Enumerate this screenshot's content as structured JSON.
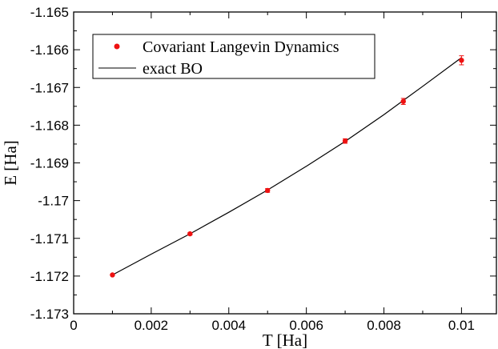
{
  "chart_data": {
    "type": "scatter",
    "xlabel": "T [Ha]",
    "ylabel": "E [Ha]",
    "xlim": [
      0,
      0.0109
    ],
    "ylim": [
      -1.173,
      -1.165
    ],
    "xticks": [
      {
        "value": 0,
        "label": "0"
      },
      {
        "value": 0.002,
        "label": "0.002"
      },
      {
        "value": 0.004,
        "label": "0.004"
      },
      {
        "value": 0.006,
        "label": "0.006"
      },
      {
        "value": 0.008,
        "label": "0.008"
      },
      {
        "value": 0.01,
        "label": "0.01"
      }
    ],
    "yticks": [
      {
        "value": -1.173,
        "label": "-1.173"
      },
      {
        "value": -1.172,
        "label": "-1.172"
      },
      {
        "value": -1.171,
        "label": "-1.171"
      },
      {
        "value": -1.17,
        "label": "-1.17"
      },
      {
        "value": -1.169,
        "label": "-1.169"
      },
      {
        "value": -1.168,
        "label": "-1.168"
      },
      {
        "value": -1.167,
        "label": "-1.167"
      },
      {
        "value": -1.166,
        "label": "-1.166"
      },
      {
        "value": -1.165,
        "label": "-1.165"
      }
    ],
    "grid": false,
    "legend_position": "top-left",
    "series": [
      {
        "name": "Covariant Langevin Dynamics",
        "type": "scatter",
        "color": "#ee1111",
        "points": [
          {
            "x": 0.001,
            "y": -1.17197,
            "err": 2e-05
          },
          {
            "x": 0.003,
            "y": -1.17088,
            "err": 3e-05
          },
          {
            "x": 0.005,
            "y": -1.16973,
            "err": 5e-05
          },
          {
            "x": 0.007,
            "y": -1.16842,
            "err": 6e-05
          },
          {
            "x": 0.0085,
            "y": -1.16737,
            "err": 8e-05
          },
          {
            "x": 0.01,
            "y": -1.16628,
            "err": 0.00012
          }
        ]
      },
      {
        "name": "exact BO",
        "type": "line",
        "color": "#000000",
        "points": [
          {
            "x": 0.001,
            "y": -1.17197
          },
          {
            "x": 0.002,
            "y": -1.17142
          },
          {
            "x": 0.003,
            "y": -1.17088
          },
          {
            "x": 0.004,
            "y": -1.17031
          },
          {
            "x": 0.005,
            "y": -1.16972
          },
          {
            "x": 0.006,
            "y": -1.16909
          },
          {
            "x": 0.007,
            "y": -1.16843
          },
          {
            "x": 0.008,
            "y": -1.16772
          },
          {
            "x": 0.009,
            "y": -1.16697
          },
          {
            "x": 0.01,
            "y": -1.16621
          }
        ]
      }
    ]
  }
}
